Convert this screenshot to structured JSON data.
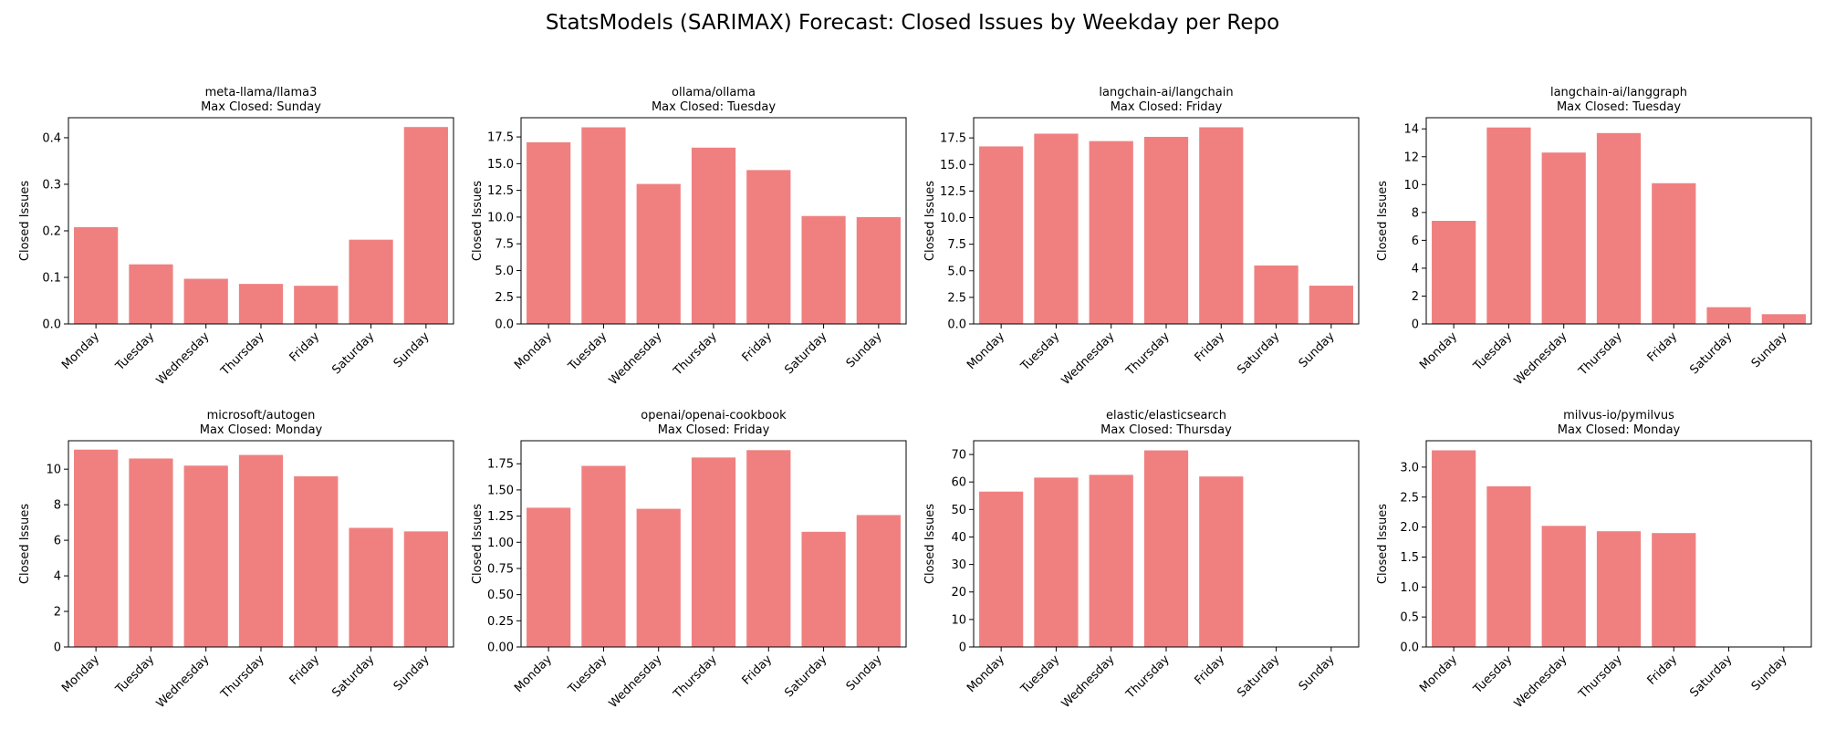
{
  "figure": {
    "title": "StatsModels (SARIMAX) Forecast: Closed Issues by Weekday per Repo",
    "bar_color": "#f08080"
  },
  "chart_data": [
    {
      "type": "bar",
      "title": "meta-llama/llama3",
      "subtitle": "Max Closed: Sunday",
      "ylabel": "Closed Issues",
      "categories": [
        "Monday",
        "Tuesday",
        "Wednesday",
        "Thursday",
        "Friday",
        "Saturday",
        "Sunday"
      ],
      "values": [
        0.208,
        0.128,
        0.097,
        0.086,
        0.082,
        0.181,
        0.423
      ],
      "ylim": [
        0,
        0.443
      ],
      "yticks": [
        0.0,
        0.1,
        0.2,
        0.3,
        0.4
      ],
      "ytick_labels": [
        "0.0",
        "0.1",
        "0.2",
        "0.3",
        "0.4"
      ]
    },
    {
      "type": "bar",
      "title": "ollama/ollama",
      "subtitle": "Max Closed: Tuesday",
      "ylabel": "Closed Issues",
      "categories": [
        "Monday",
        "Tuesday",
        "Wednesday",
        "Thursday",
        "Friday",
        "Saturday",
        "Sunday"
      ],
      "values": [
        17.0,
        18.4,
        13.1,
        16.5,
        14.4,
        10.1,
        10.0
      ],
      "ylim": [
        0,
        19.3
      ],
      "yticks": [
        0,
        2.5,
        5.0,
        7.5,
        10.0,
        12.5,
        15.0,
        17.5
      ],
      "ytick_labels": [
        "0.0",
        "2.5",
        "5.0",
        "7.5",
        "10.0",
        "12.5",
        "15.0",
        "17.5"
      ]
    },
    {
      "type": "bar",
      "title": "langchain-ai/langchain",
      "subtitle": "Max Closed: Friday",
      "ylabel": "Closed Issues",
      "categories": [
        "Monday",
        "Tuesday",
        "Wednesday",
        "Thursday",
        "Friday",
        "Saturday",
        "Sunday"
      ],
      "values": [
        16.7,
        17.9,
        17.2,
        17.6,
        18.5,
        5.5,
        3.6
      ],
      "ylim": [
        0,
        19.4
      ],
      "yticks": [
        0,
        2.5,
        5.0,
        7.5,
        10.0,
        12.5,
        15.0,
        17.5
      ],
      "ytick_labels": [
        "0.0",
        "2.5",
        "5.0",
        "7.5",
        "10.0",
        "12.5",
        "15.0",
        "17.5"
      ]
    },
    {
      "type": "bar",
      "title": "langchain-ai/langgraph",
      "subtitle": "Max Closed: Tuesday",
      "ylabel": "Closed Issues",
      "categories": [
        "Monday",
        "Tuesday",
        "Wednesday",
        "Thursday",
        "Friday",
        "Saturday",
        "Sunday"
      ],
      "values": [
        7.4,
        14.1,
        12.3,
        13.7,
        10.1,
        1.2,
        0.7
      ],
      "ylim": [
        0,
        14.8
      ],
      "yticks": [
        0,
        2,
        4,
        6,
        8,
        10,
        12,
        14
      ],
      "ytick_labels": [
        "0",
        "2",
        "4",
        "6",
        "8",
        "10",
        "12",
        "14"
      ]
    },
    {
      "type": "bar",
      "title": "microsoft/autogen",
      "subtitle": "Max Closed: Monday",
      "ylabel": "Closed Issues",
      "categories": [
        "Monday",
        "Tuesday",
        "Wednesday",
        "Thursday",
        "Friday",
        "Saturday",
        "Sunday"
      ],
      "values": [
        11.1,
        10.6,
        10.2,
        10.8,
        9.6,
        6.7,
        6.5
      ],
      "ylim": [
        0,
        11.6
      ],
      "yticks": [
        0,
        2,
        4,
        6,
        8,
        10
      ],
      "ytick_labels": [
        "0",
        "2",
        "4",
        "6",
        "8",
        "10"
      ]
    },
    {
      "type": "bar",
      "title": "openai/openai-cookbook",
      "subtitle": "Max Closed: Friday",
      "ylabel": "Closed Issues",
      "categories": [
        "Monday",
        "Tuesday",
        "Wednesday",
        "Thursday",
        "Friday",
        "Saturday",
        "Sunday"
      ],
      "values": [
        1.33,
        1.73,
        1.32,
        1.81,
        1.88,
        1.1,
        1.26
      ],
      "ylim": [
        0,
        1.97
      ],
      "yticks": [
        0,
        0.25,
        0.5,
        0.75,
        1.0,
        1.25,
        1.5,
        1.75
      ],
      "ytick_labels": [
        "0.00",
        "0.25",
        "0.50",
        "0.75",
        "1.00",
        "1.25",
        "1.50",
        "1.75"
      ]
    },
    {
      "type": "bar",
      "title": "elastic/elasticsearch",
      "subtitle": "Max Closed: Thursday",
      "ylabel": "Closed Issues",
      "categories": [
        "Monday",
        "Tuesday",
        "Wednesday",
        "Thursday",
        "Friday",
        "Saturday",
        "Sunday"
      ],
      "values": [
        56.5,
        61.6,
        62.6,
        71.5,
        62.0,
        0,
        0
      ],
      "ylim": [
        0,
        75.0
      ],
      "yticks": [
        0,
        10,
        20,
        30,
        40,
        50,
        60,
        70
      ],
      "ytick_labels": [
        "0",
        "10",
        "20",
        "30",
        "40",
        "50",
        "60",
        "70"
      ]
    },
    {
      "type": "bar",
      "title": "milvus-io/pymilvus",
      "subtitle": "Max Closed: Monday",
      "ylabel": "Closed Issues",
      "categories": [
        "Monday",
        "Tuesday",
        "Wednesday",
        "Thursday",
        "Friday",
        "Saturday",
        "Sunday"
      ],
      "values": [
        3.28,
        2.68,
        2.02,
        1.93,
        1.9,
        0,
        0
      ],
      "ylim": [
        0,
        3.44
      ],
      "yticks": [
        0,
        0.5,
        1.0,
        1.5,
        2.0,
        2.5,
        3.0
      ],
      "ytick_labels": [
        "0.0",
        "0.5",
        "1.0",
        "1.5",
        "2.0",
        "2.5",
        "3.0"
      ]
    }
  ]
}
